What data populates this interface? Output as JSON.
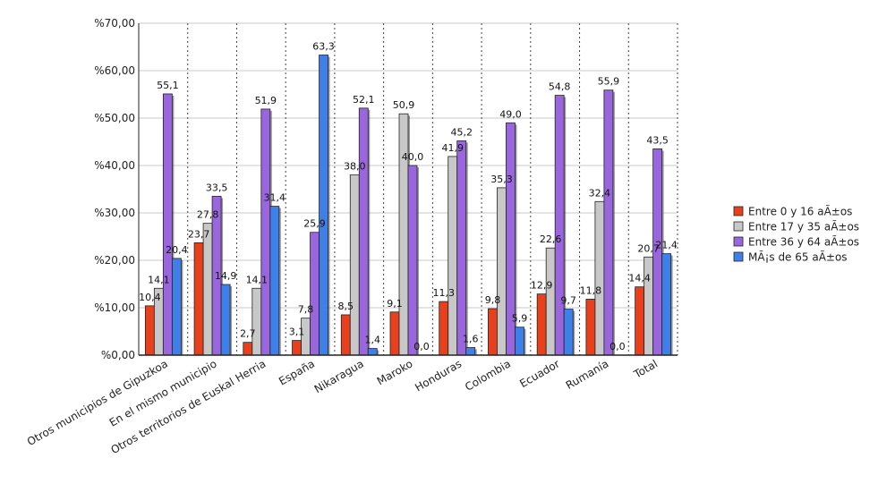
{
  "chart_data": {
    "type": "bar",
    "title": "",
    "xlabel": "",
    "ylabel": "",
    "ylim": [
      0,
      70
    ],
    "yticks": [
      "%0,00",
      "%10,00",
      "%20,00",
      "%30,00",
      "%40,00",
      "%50,00",
      "%60,00",
      "%70,00"
    ],
    "grid": {
      "horizontal": true,
      "vertical_dotted": true
    },
    "legend_position": "right",
    "categories": [
      "Otros municipios de Gipuzkoa",
      "En el mismo municipio",
      "Otros territorios de Euskal Herria",
      "España",
      "Nikaragua",
      "Maroko",
      "Honduras",
      "Colombia",
      "Ecuador",
      "Rumanía",
      "Total"
    ],
    "series": [
      {
        "name": "Entre 0 y 16 aÃ±os",
        "color": "#e8401c",
        "values": [
          10.4,
          23.7,
          2.7,
          3.1,
          8.5,
          9.1,
          11.3,
          9.8,
          12.9,
          11.8,
          14.4
        ],
        "labels": [
          "10,4",
          "23,7",
          "2,7",
          "3,1",
          "8,5",
          "9,1",
          "11,3",
          "9,8",
          "12,9",
          "11,8",
          "14,4"
        ]
      },
      {
        "name": "Entre 17 y 35 aÃ±os",
        "color": "#c8c8c8",
        "values": [
          14.1,
          27.8,
          14.1,
          7.8,
          38.0,
          50.9,
          41.9,
          35.3,
          22.6,
          32.4,
          20.7
        ],
        "labels": [
          "14,1",
          "27,8",
          "14,1",
          "7,8",
          "38,0",
          "50,9",
          "41,9",
          "35,3",
          "22,6",
          "32,4",
          "20,7"
        ]
      },
      {
        "name": "Entre 36 y 64 aÃ±os",
        "color": "#9966dd",
        "values": [
          55.1,
          33.5,
          51.9,
          25.9,
          52.1,
          40.0,
          45.2,
          49.0,
          54.8,
          55.9,
          43.5
        ],
        "labels": [
          "55,1",
          "33,5",
          "51,9",
          "25,9",
          "52,1",
          "40,0",
          "45,2",
          "49,0",
          "54,8",
          "55,9",
          "43,5"
        ]
      },
      {
        "name": "MÃ¡s de 65 aÃ±os",
        "color": "#3f7fe8",
        "values": [
          20.4,
          14.9,
          31.4,
          63.3,
          1.4,
          0.0,
          1.6,
          5.9,
          9.7,
          0.0,
          21.4
        ],
        "labels": [
          "20,4",
          "14,9",
          "31,4",
          "63,3",
          "1,4",
          "0,0",
          "1,6",
          "5,9",
          "9,7",
          "0,0",
          "21,4"
        ]
      }
    ]
  }
}
